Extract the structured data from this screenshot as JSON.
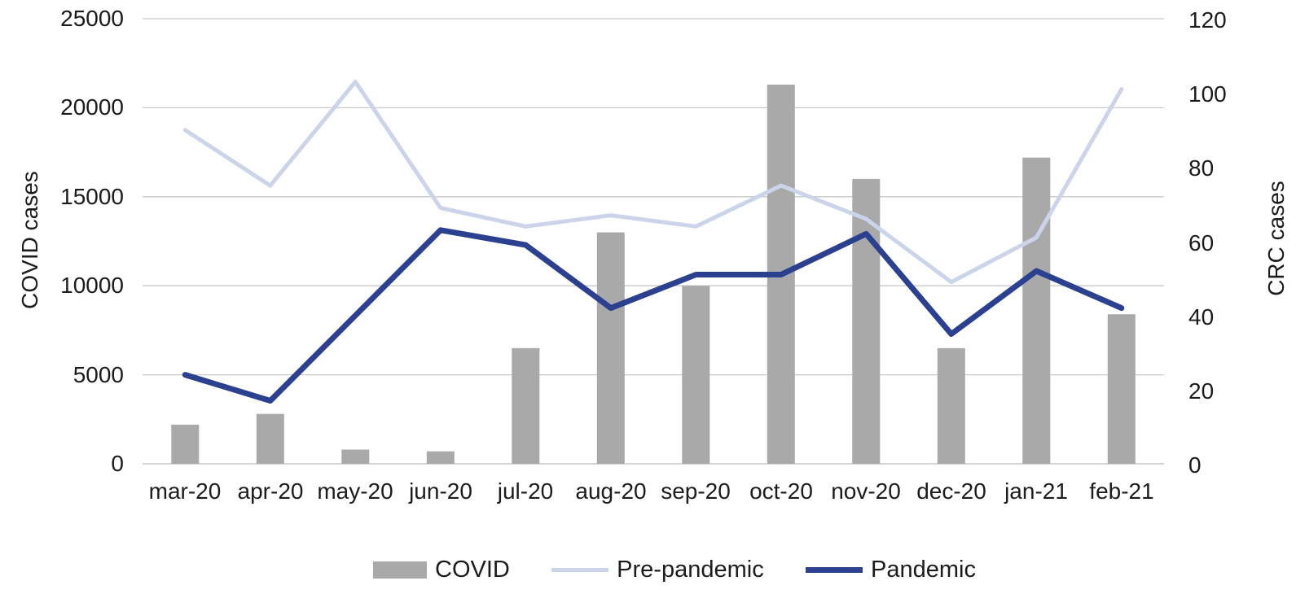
{
  "chart_data": {
    "type": "bar",
    "subtype": "combo-bar-line-dual-axis",
    "categories": [
      "mar-20",
      "apr-20",
      "may-20",
      "jun-20",
      "jul-20",
      "aug-20",
      "sep-20",
      "oct-20",
      "nov-20",
      "dec-20",
      "jan-21",
      "feb-21"
    ],
    "series": [
      {
        "name": "COVID",
        "type": "bar",
        "axis": "left",
        "color": "#a9a9a9",
        "values": [
          2200,
          2800,
          800,
          700,
          6500,
          13000,
          10000,
          21300,
          16000,
          6500,
          17200,
          8400
        ]
      },
      {
        "name": "Pre-pandemic",
        "type": "line",
        "axis": "right",
        "color": "#ccd4ea",
        "values": [
          90,
          75,
          103,
          69,
          64,
          67,
          64,
          75,
          66,
          49,
          61,
          101
        ]
      },
      {
        "name": "Pandemic",
        "type": "line",
        "axis": "right",
        "color": "#2b4190",
        "values": [
          24,
          17,
          40,
          63,
          59,
          42,
          51,
          51,
          62,
          35,
          52,
          42
        ]
      }
    ],
    "left_axis": {
      "label": "COVID cases",
      "min": 0,
      "max": 25000,
      "ticks": [
        25000,
        20000,
        15000,
        10000,
        5000,
        0
      ]
    },
    "right_axis": {
      "label": "CRC cases",
      "min": 0,
      "max": 120,
      "ticks": [
        120,
        100,
        80,
        60,
        40,
        20,
        0
      ]
    },
    "grid": true,
    "legend_position": "bottom",
    "gridline_color": "#c9c9c9",
    "baseline_color": "#bdbdbd"
  }
}
